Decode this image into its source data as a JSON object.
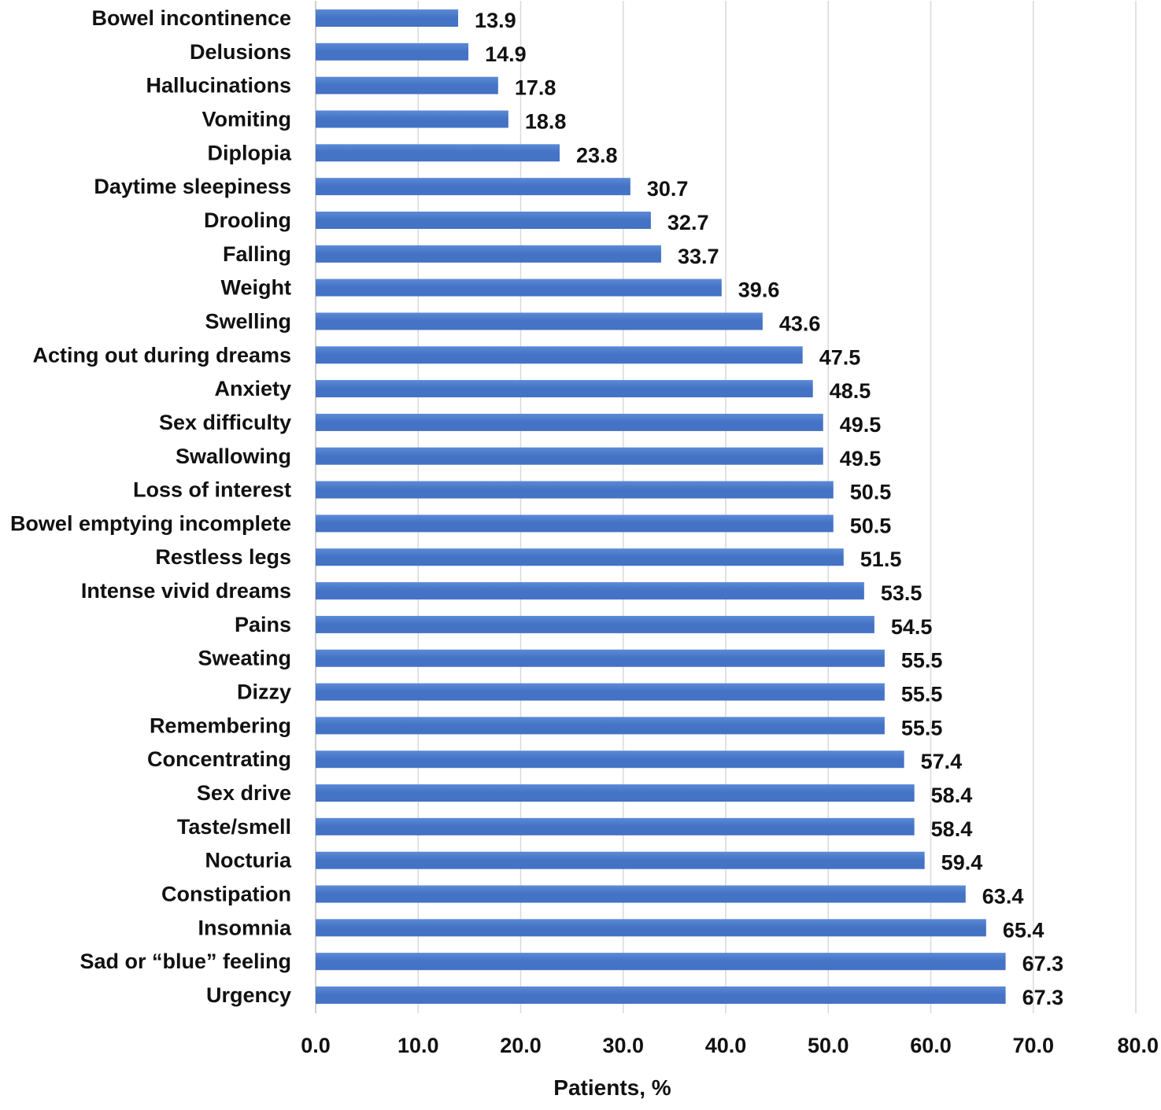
{
  "chart_data": {
    "type": "bar",
    "orientation": "horizontal",
    "title": "",
    "xlabel": "Patients, %",
    "ylabel": "",
    "xlim": [
      0,
      80
    ],
    "ticks": [
      "0.0",
      "10.0",
      "20.0",
      "30.0",
      "40.0",
      "50.0",
      "60.0",
      "70.0",
      "80.0"
    ],
    "tick_values": [
      0,
      10,
      20,
      30,
      40,
      50,
      60,
      70,
      80
    ],
    "grid": "vertical",
    "bar_color": "#4472c4",
    "bar_color_light": "#5b8ad6",
    "categories": [
      "Bowel incontinence",
      "Delusions",
      "Hallucinations",
      "Vomiting",
      "Diplopia",
      "Daytime sleepiness",
      "Drooling",
      "Falling",
      "Weight",
      "Swelling",
      "Acting out during dreams",
      "Anxiety",
      "Sex difficulty",
      "Swallowing",
      "Loss of interest",
      "Bowel emptying incomplete",
      "Restless legs",
      "Intense vivid dreams",
      "Pains",
      "Sweating",
      "Dizzy",
      "Remembering",
      "Concentrating",
      "Sex drive",
      "Taste/smell",
      "Nocturia",
      "Constipation",
      "Insomnia",
      "Sad or “blue” feeling",
      "Urgency"
    ],
    "values": [
      13.9,
      14.9,
      17.8,
      18.8,
      23.8,
      30.7,
      32.7,
      33.7,
      39.6,
      43.6,
      47.5,
      48.5,
      49.5,
      49.5,
      50.5,
      50.5,
      51.5,
      53.5,
      54.5,
      55.5,
      55.5,
      55.5,
      57.4,
      58.4,
      58.4,
      59.4,
      63.4,
      65.4,
      67.3,
      67.3
    ],
    "value_labels": [
      "13.9",
      "14.9",
      "17.8",
      "18.8",
      "23.8",
      "30.7",
      "32.7",
      "33.7",
      "39.6",
      "43.6",
      "47.5",
      "48.5",
      "49.5",
      "49.5",
      "50.5",
      "50.5",
      "51.5",
      "53.5",
      "54.5",
      "55.5",
      "55.5",
      "55.5",
      "57.4",
      "58.4",
      "58.4",
      "59.4",
      "63.4",
      "65.4",
      "67.3",
      "67.3"
    ]
  }
}
